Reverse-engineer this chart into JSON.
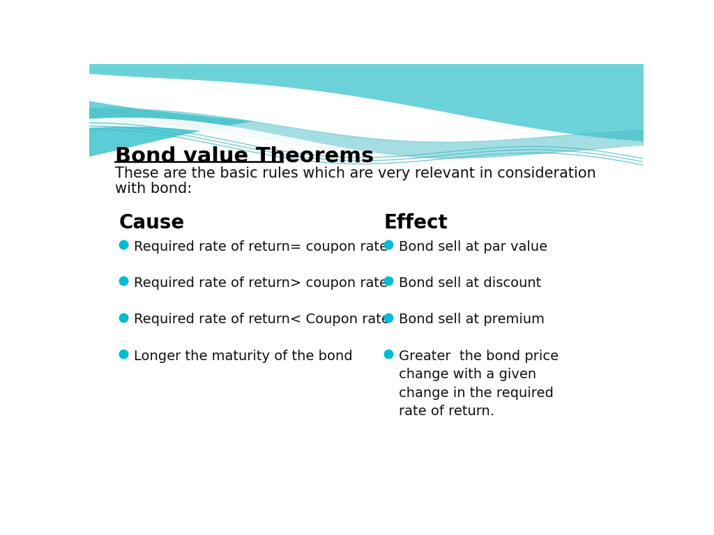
{
  "title": "Bond value Theorems",
  "subtitle_line1": "These are the basic rules which are very relevant in consideration",
  "subtitle_line2": "with bond:",
  "cause_header": "Cause",
  "effect_header": "Effect",
  "cause_items": [
    "Required rate of return= coupon rate",
    "Required rate of return> coupon rate",
    "Required rate of return< Coupon rate",
    "Longer the maturity of the bond"
  ],
  "effect_items": [
    "Bond sell at par value",
    "Bond sell at discount",
    "Bond sell at premium",
    "Greater  the bond price\nchange with a given\nchange in the required\nrate of return."
  ],
  "bg_color": "#ffffff",
  "teal_color": "#5bcdd4",
  "teal_light": "#7dd8de",
  "white_color": "#ffffff",
  "bullet_color": "#00bcd4",
  "title_color": "#000000",
  "text_color": "#111111",
  "title_fontsize": 22,
  "subtitle_fontsize": 15,
  "header_fontsize": 20,
  "body_fontsize": 14
}
